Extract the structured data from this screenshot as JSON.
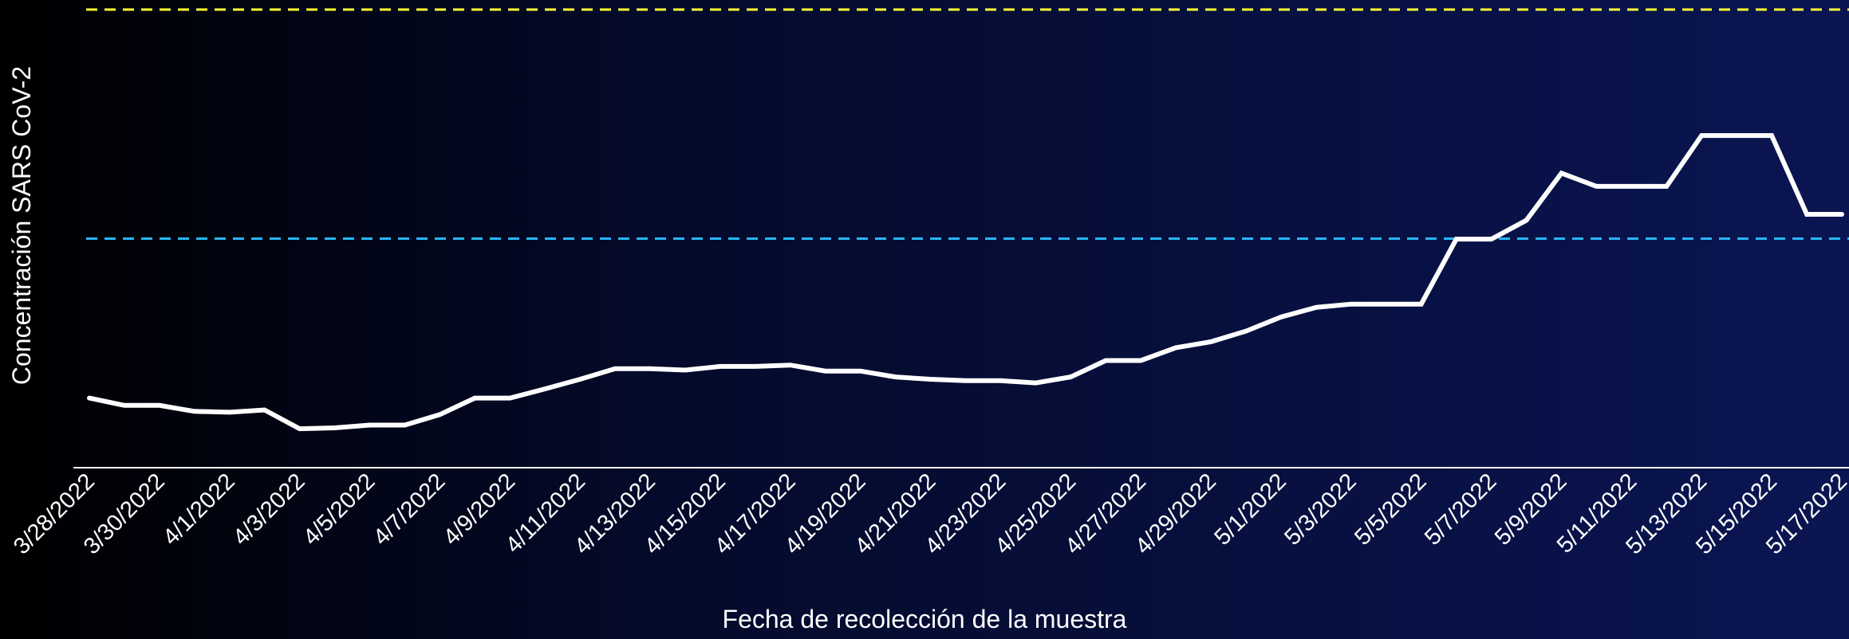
{
  "chart_data": {
    "type": "line",
    "x_label": "Fecha de recolección de la muestra",
    "y_label": "Concentración SARS CoV-2",
    "categories": [
      "3/28/2022",
      null,
      "3/30/2022",
      null,
      "4/1/2022",
      null,
      "4/3/2022",
      null,
      "4/5/2022",
      null,
      "4/7/2022",
      null,
      "4/9/2022",
      null,
      "4/11/2022",
      null,
      "4/13/2022",
      null,
      "4/15/2022",
      null,
      "4/17/2022",
      null,
      "4/19/2022",
      null,
      "4/21/2022",
      null,
      "4/23/2022",
      null,
      "4/25/2022",
      null,
      "4/27/2022",
      null,
      "4/29/2022",
      null,
      "5/1/2022",
      null,
      "5/3/2022",
      null,
      "5/5/2022",
      null,
      "5/7/2022",
      null,
      "5/9/2022",
      null,
      "5/11/2022",
      null,
      "5/13/2022",
      null,
      "5/15/2022",
      null,
      "5/17/2022"
    ],
    "values": [
      15.2,
      13.6,
      13.6,
      12.3,
      12.1,
      12.6,
      8.5,
      8.7,
      9.3,
      9.3,
      11.6,
      15.2,
      15.2,
      17.2,
      19.3,
      21.6,
      21.6,
      21.3,
      22.1,
      22.1,
      22.4,
      21.1,
      21.1,
      19.8,
      19.3,
      19.0,
      19.0,
      18.5,
      19.8,
      23.4,
      23.4,
      26.2,
      27.5,
      29.8,
      32.9,
      35.0,
      35.7,
      35.7,
      35.7,
      49.9,
      49.9,
      54.0,
      64.3,
      61.4,
      61.4,
      61.4,
      72.5,
      72.5,
      72.5,
      55.3,
      55.3
    ],
    "color": "#ffffff",
    "ylim": [
      0,
      100
    ],
    "reference_lines": [
      {
        "value": 100,
        "color": "#ffff33"
      },
      {
        "value": 50,
        "color": "#29b6f6"
      }
    ]
  }
}
